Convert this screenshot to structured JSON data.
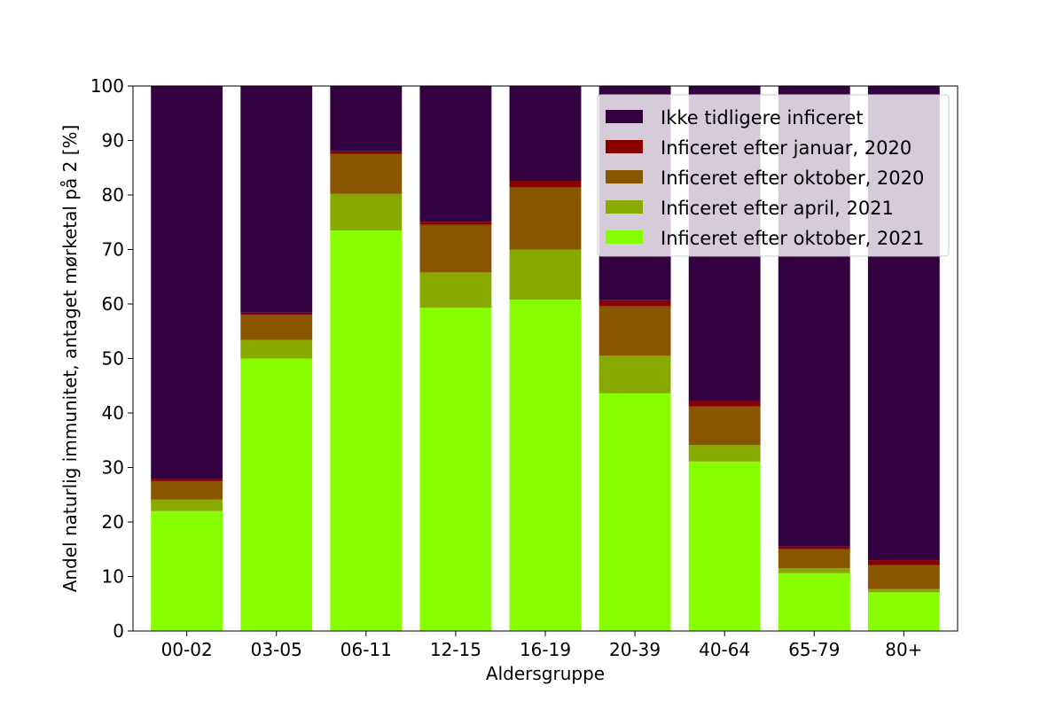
{
  "chart_data": {
    "type": "bar",
    "stacked": true,
    "categories": [
      "00-02",
      "03-05",
      "06-11",
      "12-15",
      "16-19",
      "20-39",
      "40-64",
      "65-79",
      "80+"
    ],
    "series": [
      {
        "name": "Inficeret efter oktober, 2021",
        "color": "#88ff00",
        "values": [
          22.0,
          50.0,
          73.5,
          59.3,
          60.8,
          43.6,
          31.1,
          10.6,
          7.1
        ]
      },
      {
        "name": "Inficeret efter april, 2021",
        "color": "#88aa00",
        "values": [
          2.1,
          3.4,
          6.7,
          6.5,
          9.2,
          6.9,
          3.0,
          0.9,
          0.6
        ]
      },
      {
        "name": "Inficeret efter oktober, 2020",
        "color": "#885500",
        "values": [
          3.4,
          4.6,
          7.3,
          8.7,
          11.4,
          9.1,
          7.1,
          3.5,
          4.4
        ]
      },
      {
        "name": "Inficeret efter januar, 2020",
        "color": "#880000",
        "values": [
          0.4,
          0.4,
          0.5,
          0.6,
          1.2,
          1.1,
          1.0,
          0.5,
          0.9
        ]
      },
      {
        "name": "Ikke tidligere inficeret",
        "color": "#330040",
        "values": [
          72.1,
          41.6,
          12.0,
          24.9,
          17.4,
          39.3,
          57.8,
          84.5,
          87.0
        ]
      }
    ],
    "legend_order": [
      "Ikke tidligere inficeret",
      "Inficeret efter januar, 2020",
      "Inficeret efter oktober, 2020",
      "Inficeret efter april, 2021",
      "Inficeret efter oktober, 2021"
    ],
    "legend_position": "top-right",
    "xlabel": "Aldersgruppe",
    "ylabel": "Andel naturlig immunitet, antaget mørketal på 2 [%]",
    "ylim": [
      0,
      100
    ],
    "yticks": [
      0,
      10,
      20,
      30,
      40,
      50,
      60,
      70,
      80,
      90,
      100
    ],
    "grid": false
  }
}
